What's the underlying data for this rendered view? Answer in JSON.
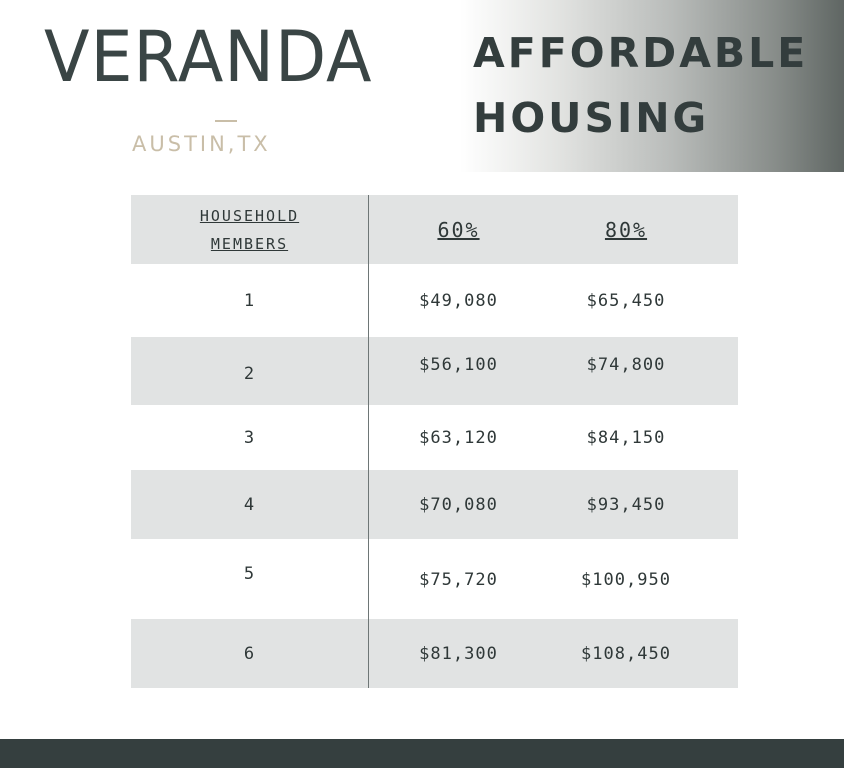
{
  "brand": {
    "name": "VERANDA",
    "location": "AUSTIN,TX"
  },
  "title": {
    "line1": "AFFORDABLE",
    "line2": "HOUSING"
  },
  "table": {
    "header": {
      "members_line1": "HOUSEHOLD",
      "members_line2": "MEMBERS",
      "col_60": "60%",
      "col_80": "80%"
    },
    "rows": [
      {
        "members": "1",
        "pct60": "$49,080",
        "pct80": "$65,450"
      },
      {
        "members": "2",
        "pct60": "$56,100",
        "pct80": "$74,800"
      },
      {
        "members": "3",
        "pct60": "$63,120",
        "pct80": "$84,150"
      },
      {
        "members": "4",
        "pct60": "$70,080",
        "pct80": "$93,450"
      },
      {
        "members": "5",
        "pct60": "$75,720",
        "pct80": "$100,950"
      },
      {
        "members": "6",
        "pct60": "$81,300",
        "pct80": "$108,450"
      }
    ]
  },
  "colors": {
    "dark_slate": "#353f3f",
    "row_shade": "#e1e3e3",
    "accent_beige": "#c9bea8"
  }
}
